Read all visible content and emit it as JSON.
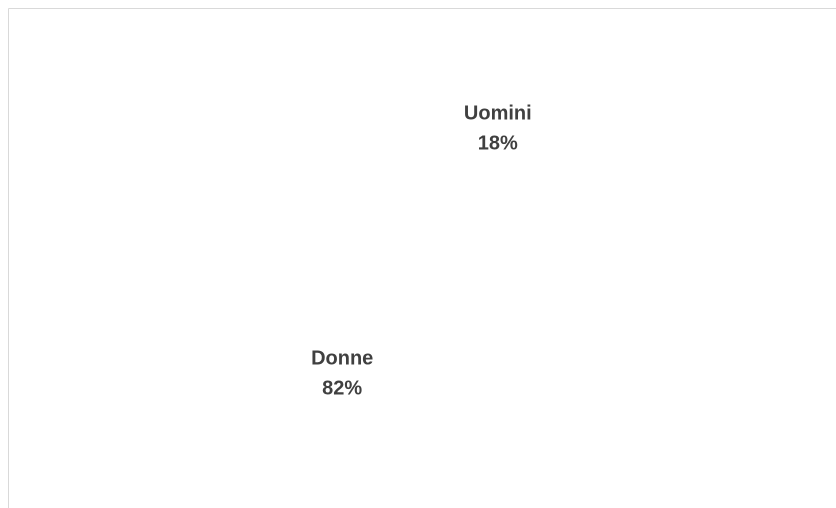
{
  "chart_data": {
    "type": "pie",
    "categories": [
      "Uomini",
      "Donne"
    ],
    "values": [
      18,
      82
    ],
    "value_labels": [
      "18%",
      "82%"
    ],
    "colors": [
      "#ffffff",
      "#ffffff"
    ]
  }
}
